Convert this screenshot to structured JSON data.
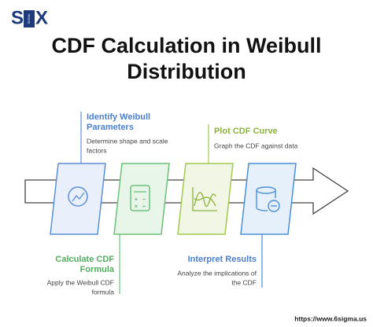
{
  "logo": {
    "left": "S",
    "middle": "SIGMA",
    "right": "X"
  },
  "header": {
    "title_lines": [
      "CDF Calculation in Weibull",
      "Distribution"
    ]
  },
  "steps": [
    {
      "title_lines": [
        "Identify Weibull",
        "Parameters"
      ],
      "description_lines": [
        "Determine shape and scale",
        "factors"
      ]
    },
    {
      "title_lines": [
        "Calculate CDF",
        "Formula"
      ],
      "description_lines": [
        "Apply the Weibull CDF",
        "formula"
      ]
    },
    {
      "title_lines": [
        "Plot CDF Curve"
      ],
      "description_lines": [
        "Graph the CDF against data"
      ]
    },
    {
      "title_lines": [
        "Interpret Results"
      ],
      "description_lines": [
        "Analyze the implications of",
        "the CDF"
      ]
    }
  ],
  "footer": {
    "url": "https://www.6sigma.us"
  }
}
